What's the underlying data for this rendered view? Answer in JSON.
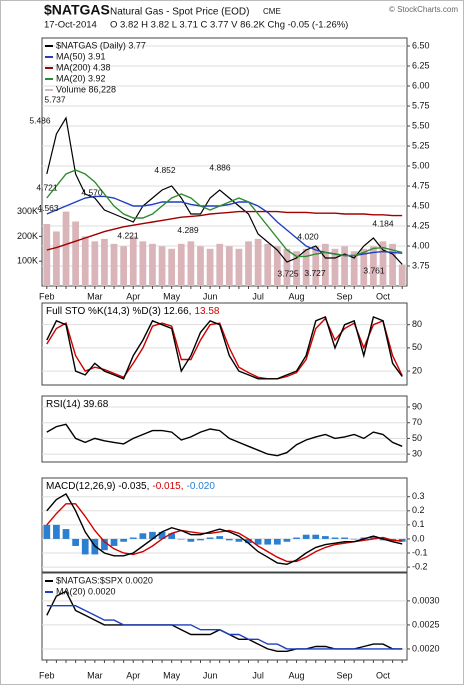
{
  "header": {
    "symbol": "$NATGAS",
    "name": "Natural Gas - Spot Price (EOD)",
    "exchange": "CME",
    "credit": "© StockCharts.com",
    "date": "17-Oct-2014",
    "quote": "O 3.82 H 3.82 L 3.71 C 3.77 V 86.2K Chg -0.05 (-1.26%)"
  },
  "chart_data": [
    {
      "type": "line",
      "categories": [
        "Feb",
        null,
        null,
        null,
        null,
        "Mar",
        null,
        null,
        null,
        "Apr",
        null,
        null,
        null,
        "May",
        null,
        null,
        null,
        "Jun",
        null,
        null,
        null,
        null,
        "Jul",
        null,
        null,
        null,
        "Aug",
        null,
        null,
        null,
        null,
        "Sep",
        null,
        null,
        null,
        "Oct",
        null,
        null
      ],
      "ylim": [
        3.5,
        6.6
      ],
      "yticks": [
        3.75,
        {
          "value": 4,
          "label": "4.00"
        },
        4.25,
        {
          "value": 4.5,
          "label": "4.50"
        },
        4.75,
        {
          "value": 5,
          "label": "5.00"
        },
        5.25,
        {
          "value": 5.5,
          "label": "5.50"
        },
        5.75,
        {
          "value": 6,
          "label": "6.00"
        },
        6.25,
        {
          "value": 6.5,
          "label": "6.50"
        }
      ],
      "y2lim": [
        0,
        1000000
      ],
      "y2ticks": [
        {
          "value": 100000,
          "label": "100K"
        },
        {
          "value": 200000,
          "label": "200K"
        },
        {
          "value": 300000,
          "label": "300K"
        }
      ],
      "grid": true,
      "series": [
        {
          "name": "$NATGAS (Daily) 3.77",
          "color": "#000000",
          "values": [
            4.9,
            5.4,
            5.6,
            4.9,
            4.65,
            4.6,
            4.45,
            4.4,
            4.35,
            4.3,
            4.5,
            4.6,
            4.7,
            4.75,
            4.6,
            4.4,
            4.4,
            4.6,
            4.7,
            4.6,
            4.5,
            4.4,
            4.15,
            4.05,
            3.95,
            3.8,
            3.85,
            3.95,
            4.0,
            3.85,
            3.85,
            3.9,
            3.85,
            4.0,
            4.1,
            3.95,
            3.9,
            3.77
          ]
        },
        {
          "name": "MA(50) 3.91",
          "color": "#1f3fbf",
          "values": [
            4.4,
            4.45,
            4.5,
            4.55,
            4.6,
            4.62,
            4.62,
            4.6,
            4.55,
            4.5,
            4.5,
            4.52,
            4.55,
            4.55,
            4.55,
            4.52,
            4.5,
            4.5,
            4.5,
            4.52,
            4.55,
            4.55,
            4.5,
            4.42,
            4.3,
            4.2,
            4.1,
            4.0,
            3.95,
            3.92,
            3.9,
            3.88,
            3.88,
            3.9,
            3.92,
            3.93,
            3.92,
            3.91
          ]
        },
        {
          "name": "MA(200) 4.38",
          "color": "#a00000",
          "values": [
            3.95,
            3.98,
            4.02,
            4.06,
            4.1,
            4.14,
            4.18,
            4.21,
            4.24,
            4.26,
            4.28,
            4.3,
            4.32,
            4.34,
            4.36,
            4.37,
            4.38,
            4.4,
            4.41,
            4.42,
            4.43,
            4.43,
            4.43,
            4.43,
            4.43,
            4.42,
            4.42,
            4.42,
            4.41,
            4.41,
            4.41,
            4.4,
            4.4,
            4.4,
            4.39,
            4.39,
            4.38,
            4.38
          ]
        },
        {
          "name": "MA(20) 3.92",
          "color": "#2e8b2e",
          "values": [
            4.6,
            4.75,
            4.9,
            4.95,
            4.9,
            4.8,
            4.65,
            4.5,
            4.4,
            4.35,
            4.35,
            4.4,
            4.5,
            4.6,
            4.65,
            4.6,
            4.5,
            4.45,
            4.5,
            4.55,
            4.6,
            4.55,
            4.4,
            4.25,
            4.1,
            3.95,
            3.87,
            3.87,
            3.9,
            3.92,
            3.9,
            3.88,
            3.88,
            3.92,
            3.97,
            3.98,
            3.95,
            3.92
          ]
        },
        {
          "name": "Volume 86,228",
          "color": "#d9b4b8",
          "kind": "bar",
          "axis": "y2",
          "values": [
            250000,
            220000,
            300000,
            260000,
            200000,
            180000,
            190000,
            170000,
            160000,
            200000,
            180000,
            170000,
            160000,
            150000,
            170000,
            180000,
            160000,
            150000,
            170000,
            160000,
            150000,
            180000,
            190000,
            170000,
            160000,
            150000,
            140000,
            150000,
            160000,
            170000,
            150000,
            160000,
            140000,
            150000,
            160000,
            180000,
            170000,
            86228
          ]
        }
      ],
      "annotations": [
        {
          "label": "5.737",
          "value": 5.737
        },
        {
          "label": "5.486",
          "value": 5.486
        },
        {
          "label": "4.721",
          "value": 4.721
        },
        {
          "label": "4.563",
          "value": 4.563
        },
        {
          "label": "4.570",
          "value": 4.57
        },
        {
          "label": "4.221",
          "value": 4.221
        },
        {
          "label": "4.852",
          "value": 4.852
        },
        {
          "label": "4.289",
          "value": 4.289
        },
        {
          "label": "4.886",
          "value": 4.886
        },
        {
          "label": "4.020",
          "value": 4.02
        },
        {
          "label": "4.184",
          "value": 4.184
        },
        {
          "label": "3.725",
          "value": 3.725
        },
        {
          "label": "3.727",
          "value": 3.727
        },
        {
          "label": "3.761",
          "value": 3.761
        }
      ]
    },
    {
      "type": "line",
      "legend": [
        {
          "text": "Full STO %K(14,3) %D(3) 12.66,",
          "color": "#000000"
        },
        {
          "text": "13.58",
          "color": "#d00000"
        }
      ],
      "ylim": [
        2,
        108
      ],
      "yticks": [
        20,
        50,
        80
      ],
      "grid": true,
      "series": [
        {
          "color": "#d00000",
          "values": [
            55,
            75,
            82,
            40,
            20,
            25,
            22,
            17,
            12,
            30,
            50,
            78,
            82,
            78,
            35,
            35,
            60,
            80,
            82,
            50,
            25,
            18,
            12,
            10,
            10,
            13,
            18,
            35,
            75,
            88,
            60,
            75,
            82,
            50,
            80,
            85,
            40,
            14
          ]
        },
        {
          "color": "#000000",
          "values": [
            60,
            85,
            80,
            20,
            15,
            30,
            20,
            15,
            10,
            40,
            60,
            85,
            80,
            75,
            20,
            40,
            70,
            85,
            80,
            40,
            20,
            15,
            10,
            10,
            10,
            15,
            20,
            40,
            85,
            90,
            50,
            80,
            85,
            40,
            90,
            85,
            30,
            13
          ]
        }
      ]
    },
    {
      "type": "line",
      "legend": [
        {
          "text": "RSI(14) 39.68",
          "color": "#000000"
        }
      ],
      "ylim": [
        20,
        104
      ],
      "yticks": [
        30,
        50,
        70,
        90
      ],
      "grid": true,
      "series": [
        {
          "color": "#000000",
          "values": [
            58,
            65,
            68,
            50,
            45,
            50,
            47,
            45,
            43,
            50,
            55,
            60,
            60,
            58,
            48,
            52,
            58,
            62,
            60,
            50,
            45,
            40,
            35,
            30,
            28,
            32,
            42,
            48,
            52,
            55,
            50,
            52,
            55,
            50,
            58,
            55,
            45,
            40
          ]
        }
      ]
    },
    {
      "type": "line",
      "legend": [
        {
          "text": "MACD(12,26,9) -0.035,",
          "color": "#000000"
        },
        {
          "text": "-0.015,",
          "color": "#d00000"
        },
        {
          "text": "-0.020",
          "color": "#2a7fd0"
        }
      ],
      "ylim": [
        -0.235,
        0.433
      ],
      "yticks": [
        -0.2,
        -0.1,
        {
          "value": 0,
          "label": "0.0"
        },
        0.1,
        0.2,
        0.3
      ],
      "grid": true,
      "series": [
        {
          "color": "#2a7fd0",
          "kind": "bar",
          "values": [
            0.1,
            0.1,
            0.07,
            -0.05,
            -0.11,
            -0.11,
            -0.08,
            -0.05,
            -0.02,
            0.01,
            0.04,
            0.05,
            0.05,
            0.04,
            0,
            -0.02,
            -0.01,
            0.01,
            0.02,
            -0.01,
            -0.02,
            -0.03,
            -0.04,
            -0.04,
            -0.04,
            -0.02,
            0.01,
            0.03,
            0.03,
            0.02,
            0.01,
            0.01,
            0,
            0.01,
            0.02,
            -0.01,
            -0.01,
            -0.02
          ]
        },
        {
          "color": "#d00000",
          "values": [
            0.1,
            0.18,
            0.25,
            0.25,
            0.16,
            0.06,
            -0.02,
            -0.07,
            -0.1,
            -0.11,
            -0.09,
            -0.05,
            0.0,
            0.04,
            0.06,
            0.05,
            0.04,
            0.04,
            0.05,
            0.06,
            0.04,
            0.0,
            -0.05,
            -0.09,
            -0.13,
            -0.16,
            -0.16,
            -0.13,
            -0.09,
            -0.06,
            -0.04,
            -0.03,
            -0.02,
            -0.01,
            0.0,
            0.01,
            -0.01,
            -0.015
          ]
        },
        {
          "color": "#000000",
          "values": [
            0.2,
            0.28,
            0.32,
            0.2,
            0.05,
            -0.05,
            -0.1,
            -0.12,
            -0.12,
            -0.1,
            -0.05,
            0.0,
            0.05,
            0.08,
            0.06,
            0.03,
            0.03,
            0.05,
            0.07,
            0.05,
            0.02,
            -0.03,
            -0.09,
            -0.13,
            -0.17,
            -0.18,
            -0.15,
            -0.1,
            -0.06,
            -0.04,
            -0.03,
            -0.02,
            -0.02,
            0.0,
            0.02,
            0.0,
            -0.02,
            -0.035
          ]
        }
      ]
    },
    {
      "type": "line",
      "categories": [
        "Feb",
        null,
        null,
        null,
        null,
        "Mar",
        null,
        null,
        null,
        "Apr",
        null,
        null,
        null,
        "May",
        null,
        null,
        null,
        "Jun",
        null,
        null,
        null,
        null,
        "Jul",
        null,
        null,
        null,
        "Aug",
        null,
        null,
        null,
        null,
        "Sep",
        null,
        null,
        null,
        "Oct",
        null,
        null
      ],
      "ylim": [
        0.00177,
        0.00358
      ],
      "yticks": [
        {
          "value": 0.002,
          "label": "0.0020"
        },
        {
          "value": 0.0025,
          "label": "0.0025"
        },
        {
          "value": 0.003,
          "label": "0.0030"
        }
      ],
      "grid": true,
      "series": [
        {
          "name": "$NATGAS:$SPX 0.0020",
          "color": "#000000",
          "values": [
            0.0027,
            0.0031,
            0.0032,
            0.0028,
            0.0027,
            0.0026,
            0.0025,
            0.0025,
            0.0025,
            0.0025,
            0.0025,
            0.0025,
            0.0025,
            0.0025,
            0.0024,
            0.0023,
            0.0023,
            0.0023,
            0.0024,
            0.0023,
            0.0022,
            0.0022,
            0.0021,
            0.002,
            0.00195,
            0.00195,
            0.002,
            0.002,
            0.00205,
            0.00205,
            0.002,
            0.002,
            0.002,
            0.00205,
            0.0021,
            0.0021,
            0.002,
            0.002
          ]
        },
        {
          "name": "MA(20) 0.0020",
          "color": "#1f3fbf",
          "values": [
            0.0029,
            0.0029,
            0.0029,
            0.0029,
            0.0028,
            0.0027,
            0.0026,
            0.0026,
            0.0025,
            0.0025,
            0.0025,
            0.0025,
            0.0025,
            0.0025,
            0.0025,
            0.0025,
            0.0024,
            0.0024,
            0.0024,
            0.0023,
            0.0023,
            0.0022,
            0.0022,
            0.0021,
            0.0021,
            0.002,
            0.002,
            0.002,
            0.002,
            0.002,
            0.002,
            0.002,
            0.002,
            0.002,
            0.002,
            0.002,
            0.002,
            0.002
          ]
        }
      ]
    }
  ]
}
